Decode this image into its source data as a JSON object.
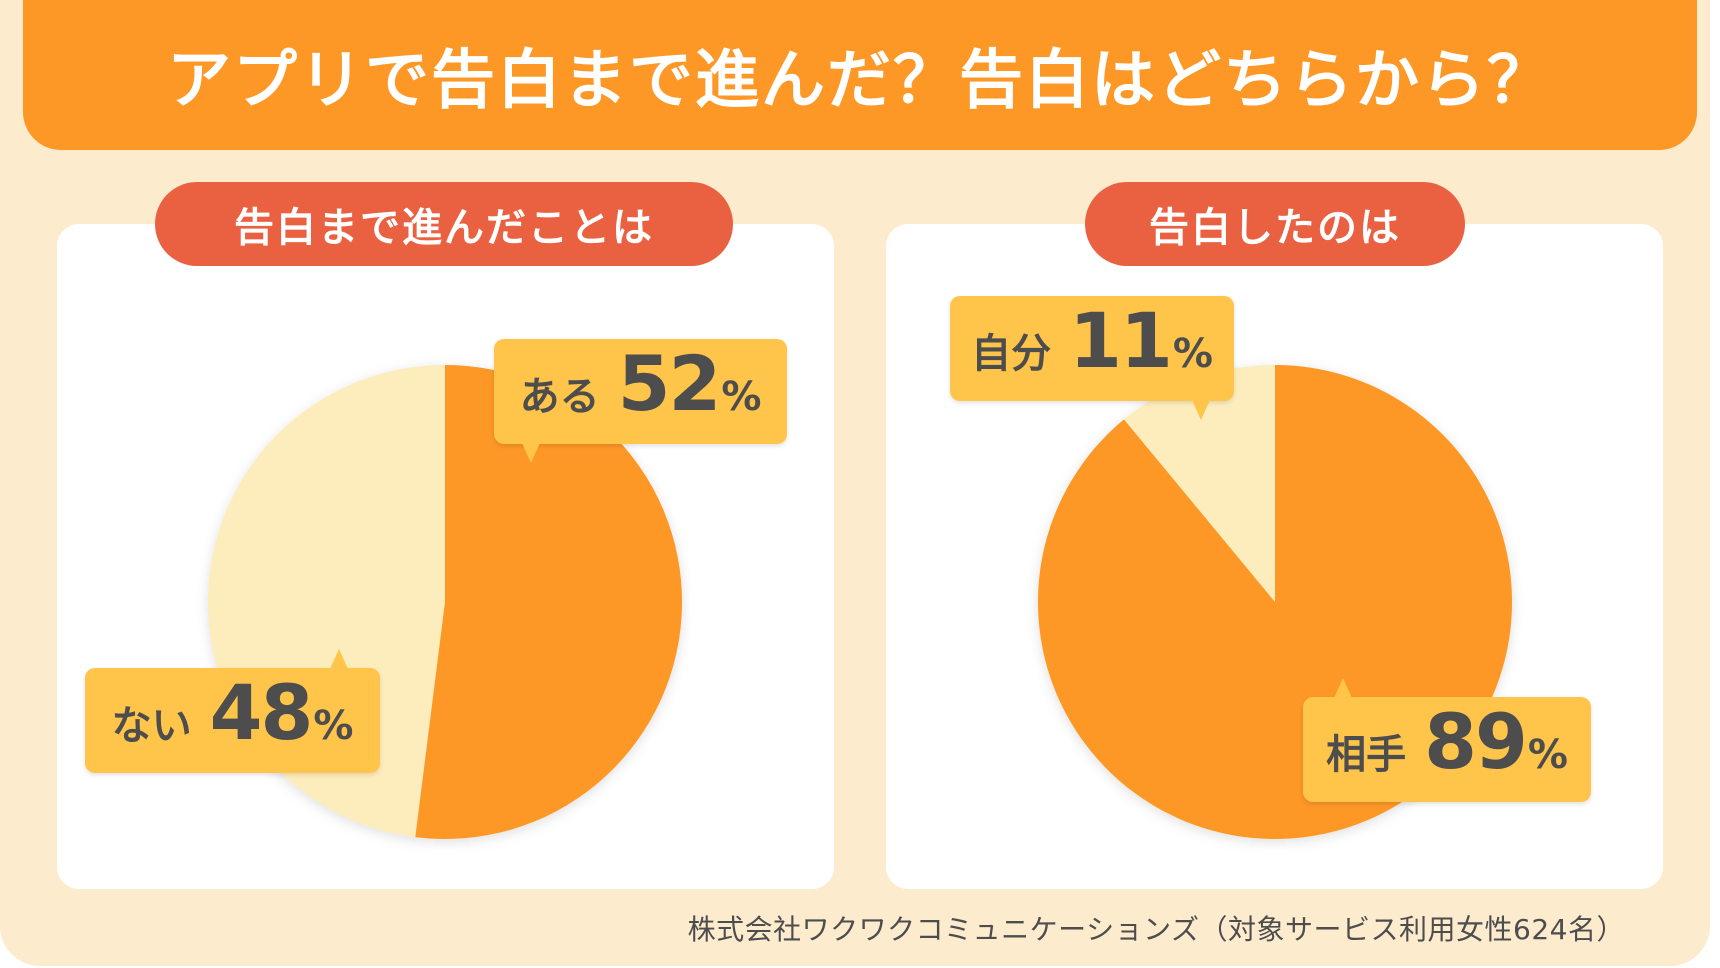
{
  "title": "アプリで告白まで進んだ？告白はどちらから？",
  "colors": {
    "background": "#FDEBCE",
    "title_bar": "#FD9827",
    "pill": "#EA6142",
    "slice_major": "#FD9827",
    "slice_minor": "#FEEDBC",
    "label_bg": "#FFC54A",
    "text_dark": "#4D4D4D"
  },
  "panels": [
    {
      "heading": "告白まで進んだことは",
      "labels": [
        {
          "name": "ある",
          "value": "52",
          "unit": "%"
        },
        {
          "name": "ない",
          "value": "48",
          "unit": "%"
        }
      ]
    },
    {
      "heading": "告白したのは",
      "labels": [
        {
          "name": "自分",
          "value": "11",
          "unit": "%"
        },
        {
          "name": "相手",
          "value": "89",
          "unit": "%"
        }
      ]
    }
  ],
  "footer": "株式会社ワクワクコミュニケーションズ（対象サービス利用女性624名）",
  "chart_data": [
    {
      "type": "pie",
      "title": "告白まで進んだことは",
      "categories": [
        "ある",
        "ない"
      ],
      "values": [
        52,
        48
      ],
      "colors": [
        "#FD9827",
        "#FEEDBC"
      ],
      "start_angle": "12 o'clock, clockwise"
    },
    {
      "type": "pie",
      "title": "告白したのは",
      "categories": [
        "相手",
        "自分"
      ],
      "values": [
        89,
        11
      ],
      "colors": [
        "#FD9827",
        "#FEEDBC"
      ],
      "start_angle": "12 o'clock, clockwise"
    }
  ]
}
